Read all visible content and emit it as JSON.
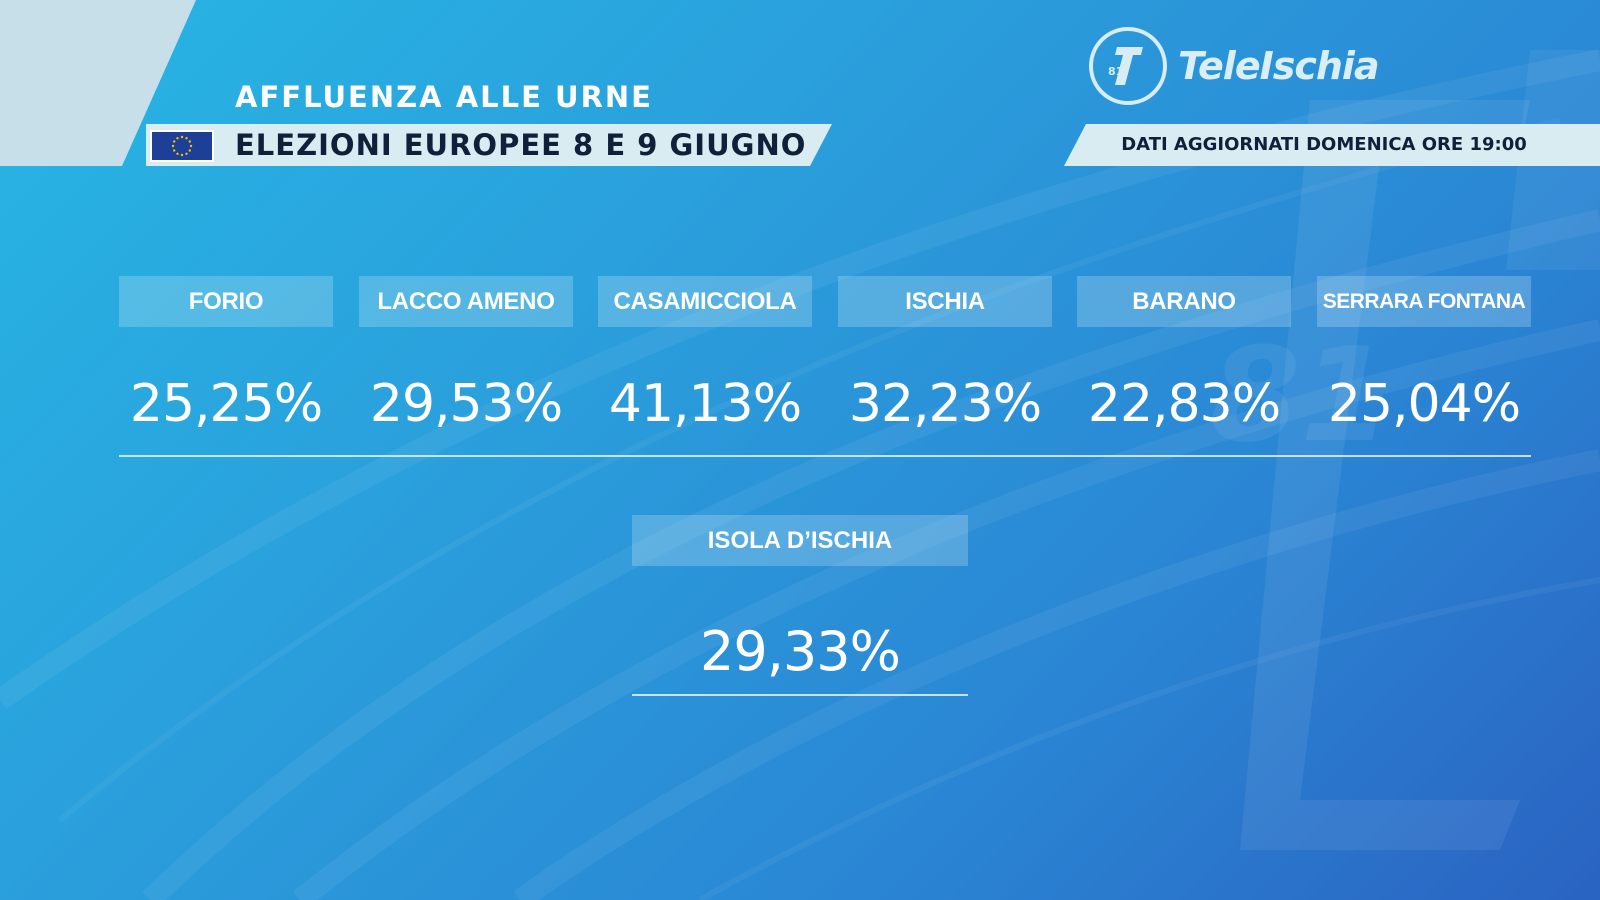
{
  "header": {
    "subtitle": "AFFLUENZA ALLE URNE",
    "title": "ELEZIONI EUROPEE 8 E 9 GIUGNO",
    "flag_icon": "eu-flag-icon",
    "update_note": "DATI AGGIORNATI DOMENICA ORE 19:00"
  },
  "brand": {
    "logo_icon": "teleischia-81-logo",
    "name": "TeleIschia"
  },
  "municipalities": [
    {
      "name": "FORIO",
      "turnout": "25,25%"
    },
    {
      "name": "LACCO AMENO",
      "turnout": "29,53%"
    },
    {
      "name": "CASAMICCIOLA",
      "turnout": "41,13%"
    },
    {
      "name": "ISCHIA",
      "turnout": "32,23%"
    },
    {
      "name": "BARANO",
      "turnout": "22,83%"
    },
    {
      "name": "SERRARA FONTANA",
      "turnout": "25,04%"
    }
  ],
  "total": {
    "name": "ISOLA D’ISCHIA",
    "turnout": "29,33%"
  },
  "colors": {
    "background_top": "#27b6e4",
    "background_bottom": "#2a63c2",
    "strip": "#d9ecf2",
    "title_text": "#11203a",
    "eu_blue": "#1d3f98",
    "eu_stars": "#f2c200"
  }
}
